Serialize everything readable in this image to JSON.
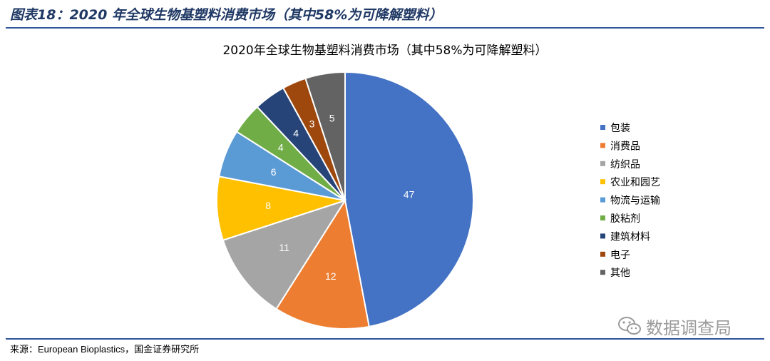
{
  "figure_title": "图表18：2020 年全球生物基塑料消费市场（其中58%为可降解塑料）",
  "source_text": "来源：European Bioplastics，国金证券研究所",
  "watermark": {
    "text": "数据调查局",
    "icon": "wechat-icon"
  },
  "chart_data": {
    "type": "pie",
    "title": "2020年全球生物基塑料消费市场（其中58%为可降解塑料）",
    "legend_position": "right",
    "slices": [
      {
        "label": "包装",
        "value": 47,
        "color": "#4472c4"
      },
      {
        "label": "消费品",
        "value": 12,
        "color": "#ed7d31"
      },
      {
        "label": "纺织品",
        "value": 11,
        "color": "#a5a5a5"
      },
      {
        "label": "农业和园艺",
        "value": 8,
        "color": "#ffc000"
      },
      {
        "label": "物流与运输",
        "value": 6,
        "color": "#5b9bd5"
      },
      {
        "label": "胶粘剂",
        "value": 4,
        "color": "#70ad47"
      },
      {
        "label": "建筑材料",
        "value": 4,
        "color": "#264478"
      },
      {
        "label": "电子",
        "value": 3,
        "color": "#9e480e"
      },
      {
        "label": "其他",
        "value": 5,
        "color": "#636363"
      }
    ]
  }
}
